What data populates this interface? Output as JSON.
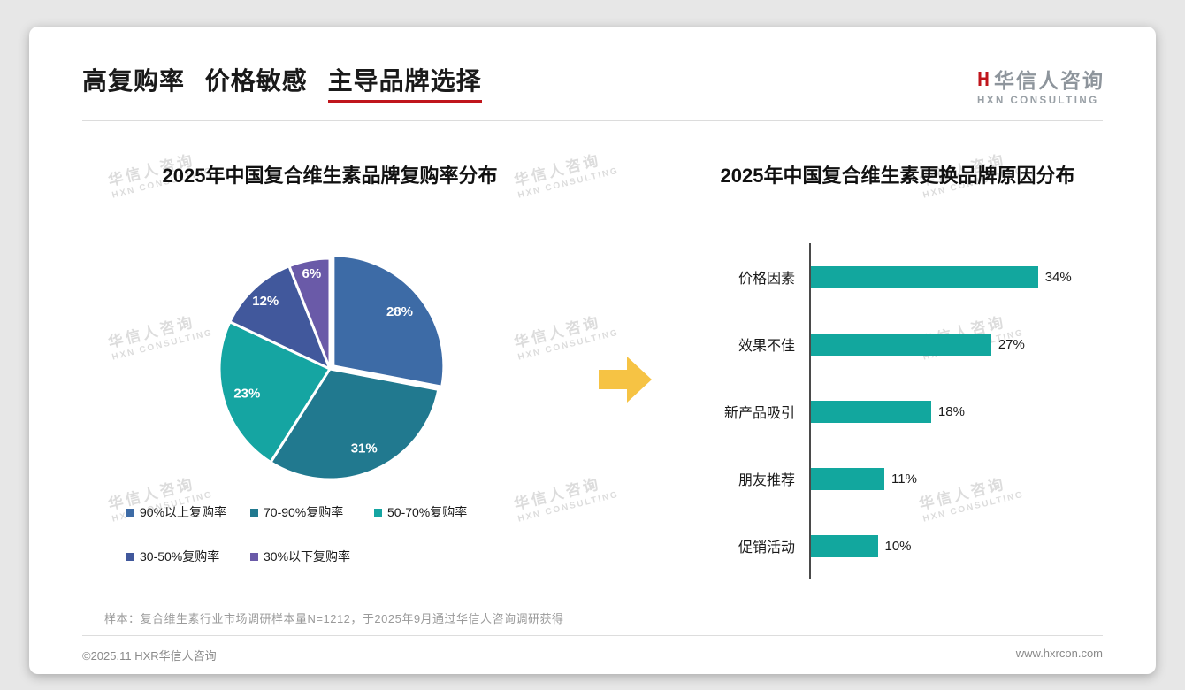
{
  "page": {
    "title_part1": "高复购率",
    "title_part2": "价格敏感",
    "title_part3": "主导品牌选择",
    "sample_note": "样本：复合维生素行业市场调研样本量N=1212，于2025年9月通过华信人咨询调研获得",
    "copyright": "©2025.11 HXR华信人咨询",
    "website": "www.hxrcon.com"
  },
  "logo": {
    "name": "华信人咨询",
    "subtitle": "HXN CONSULTING"
  },
  "watermark": {
    "line1": "华信人咨询",
    "line2": "HXN CONSULTING"
  },
  "accent_colors": {
    "title_underline": "#C0161C",
    "arrow": "#F6C344"
  },
  "chart_data": [
    {
      "type": "pie",
      "title": "2025年中国复合维生素品牌复购率分布",
      "labels": [
        "90%以上复购率",
        "70-90%复购率",
        "50-70%复购率",
        "30-50%复购率",
        "30%以下复购率"
      ],
      "values": [
        28,
        31,
        23,
        12,
        6
      ],
      "unit": "%",
      "colors": [
        "#3D6BA6",
        "#21798F",
        "#15A5A2",
        "#41589C",
        "#6A5AA8"
      ],
      "legend_position": "bottom",
      "start_angle_deg": -90,
      "direction": "clockwise",
      "exploded_slice": 0
    },
    {
      "type": "bar",
      "title": "2025年中国复合维生素更换品牌原因分布",
      "orientation": "horizontal",
      "categories": [
        "价格因素",
        "效果不佳",
        "新产品吸引",
        "朋友推荐",
        "促销活动"
      ],
      "values": [
        34,
        27,
        18,
        11,
        10
      ],
      "value_suffix": "%",
      "bar_color": "#12A79E",
      "xlim": [
        0,
        40
      ],
      "grid": false
    }
  ]
}
